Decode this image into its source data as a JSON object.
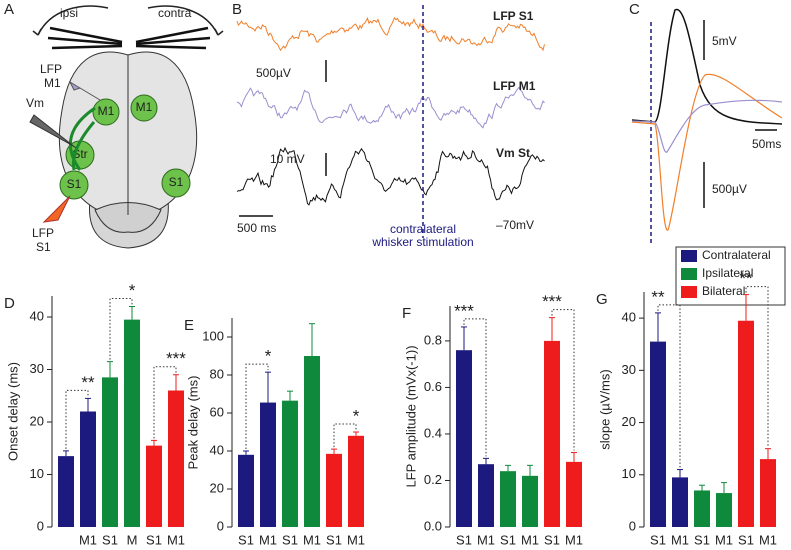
{
  "panels": {
    "a": {
      "letter": "A",
      "ipsi": "ipsi",
      "contra": "contra",
      "lfp_m1": [
        "LFP",
        "M1"
      ],
      "vm": "Vm",
      "m1_left": "M1",
      "m1_right": "M1",
      "str": "Str",
      "s1_left": "S1",
      "s1_right": "S1",
      "lfp_s1": [
        "LFP",
        "S1"
      ]
    },
    "b": {
      "letter": "B",
      "lfp_s1": "LFP S1",
      "lfp_m1": "LFP M1",
      "vm_st": "Vm St",
      "scale_lfp": "500µV",
      "scale_vm": "10 mV",
      "scale_time": "500 ms",
      "rest": "–70mV",
      "stim": [
        "contralateral",
        "whisker stimulation"
      ]
    },
    "c": {
      "letter": "C",
      "scale_vm": "5mV",
      "scale_time": "50ms",
      "scale_lfp": "500µV"
    }
  },
  "legend": [
    {
      "name": "Contralateral",
      "color": "#1c1a7e"
    },
    {
      "name": "Ipsilateral",
      "color": "#0f8a3c"
    },
    {
      "name": "Bilateral",
      "color": "#ee1c1c"
    }
  ],
  "chart_data": [
    {
      "type": "bar",
      "panel": "D",
      "ylabel": "Onset delay (ms)",
      "categories": [
        null,
        "M1",
        "S1",
        "M",
        "S1",
        "M1"
      ],
      "values": [
        13.5,
        22,
        28.5,
        39.5,
        15.5,
        26
      ],
      "errors": [
        1,
        2.5,
        3,
        2.5,
        1,
        3
      ],
      "colors": [
        "#1c1a7e",
        "#1c1a7e",
        "#0f8a3c",
        "#0f8a3c",
        "#ee1c1c",
        "#ee1c1c"
      ],
      "significance": [
        "**",
        "*",
        "***"
      ],
      "ylim": [
        0,
        44
      ],
      "yticks": [
        0,
        10,
        20,
        30,
        40
      ]
    },
    {
      "type": "bar",
      "panel": "E",
      "ylabel": "Peak delay (ms)",
      "categories": [
        "S1",
        "M1",
        "S1",
        "M1",
        "S1",
        "M1"
      ],
      "values": [
        38,
        65.5,
        66.5,
        90,
        38.5,
        48
      ],
      "errors": [
        2,
        16,
        5,
        17,
        2.5,
        2
      ],
      "colors": [
        "#1c1a7e",
        "#1c1a7e",
        "#0f8a3c",
        "#0f8a3c",
        "#ee1c1c",
        "#ee1c1c"
      ],
      "significance": [
        "*",
        null,
        "*"
      ],
      "ylim": [
        0,
        110
      ],
      "yticks": [
        0,
        20,
        40,
        60,
        80,
        100
      ]
    },
    {
      "type": "bar",
      "panel": "F",
      "ylabel": "LFP amplitude (mVx(-1))",
      "categories": [
        "S1",
        "M1",
        "S1",
        "M1",
        "S1",
        "M1"
      ],
      "values": [
        0.76,
        0.27,
        0.24,
        0.22,
        0.8,
        0.28
      ],
      "errors": [
        0.1,
        0.025,
        0.025,
        0.045,
        0.1,
        0.04
      ],
      "colors": [
        "#1c1a7e",
        "#1c1a7e",
        "#0f8a3c",
        "#0f8a3c",
        "#ee1c1c",
        "#ee1c1c"
      ],
      "significance": [
        "***",
        null,
        "***"
      ],
      "ylim": [
        0,
        0.95
      ],
      "yticks": [
        {
          "value": 0,
          "label": "0.0"
        },
        0.2,
        0.4,
        0.6,
        0.8
      ]
    },
    {
      "type": "bar",
      "panel": "G",
      "ylabel": "slope (µV/ms)",
      "categories": [
        "S1",
        "M1",
        "S1",
        "M1",
        "S1",
        "M1"
      ],
      "values": [
        35.5,
        9.5,
        7,
        6.5,
        39.5,
        13
      ],
      "errors": [
        5.5,
        1.5,
        1,
        2,
        5,
        2
      ],
      "colors": [
        "#1c1a7e",
        "#1c1a7e",
        "#0f8a3c",
        "#0f8a3c",
        "#ee1c1c",
        "#ee1c1c"
      ],
      "significance": [
        "**",
        null,
        "**"
      ],
      "ylim": [
        0,
        45
      ],
      "yticks": [
        0,
        10,
        20,
        30,
        40
      ]
    }
  ]
}
